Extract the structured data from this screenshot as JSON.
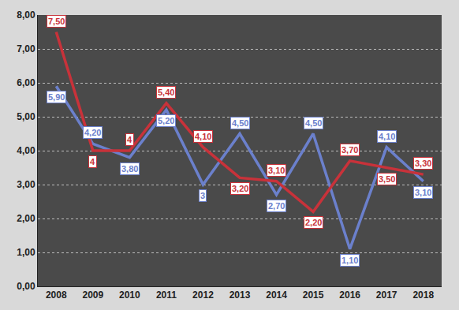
{
  "chart_data": {
    "type": "line",
    "categories": [
      "2008",
      "2009",
      "2010",
      "2011",
      "2012",
      "2013",
      "2014",
      "2015",
      "2016",
      "2017",
      "2018"
    ],
    "series": [
      {
        "color": "#6b80cc",
        "values": [
          5.9,
          4.2,
          3.8,
          5.2,
          3,
          4.5,
          2.7,
          4.5,
          1.1,
          4.1,
          3.1
        ],
        "value_labels": [
          "5,90",
          "4,20",
          "3,80",
          "5,20",
          "3",
          "4,50",
          "2,70",
          "4,50",
          "1,10",
          "4,10",
          "3,10"
        ]
      },
      {
        "color": "#c8323a",
        "values": [
          7.5,
          4,
          4,
          5.4,
          4.1,
          3.2,
          3.1,
          2.2,
          3.7,
          3.5,
          3.3
        ],
        "value_labels": [
          "7,50",
          "4",
          "4",
          "5,40",
          "4,10",
          "3,20",
          "3,10",
          "2,20",
          "3,70",
          "3,50",
          "3,30"
        ]
      }
    ],
    "ylim": [
      0,
      8
    ],
    "yticks": [
      {
        "value": 0,
        "label": "0,00"
      },
      {
        "value": 1,
        "label": "1,00"
      },
      {
        "value": 2,
        "label": "2,00"
      },
      {
        "value": 3,
        "label": "3,00"
      },
      {
        "value": 4,
        "label": "4,00"
      },
      {
        "value": 5,
        "label": "5,00"
      },
      {
        "value": 6,
        "label": "6,00"
      },
      {
        "value": 7,
        "label": "7,00"
      },
      {
        "value": 8,
        "label": "8,00"
      }
    ],
    "grid": true,
    "data_labels": true
  }
}
